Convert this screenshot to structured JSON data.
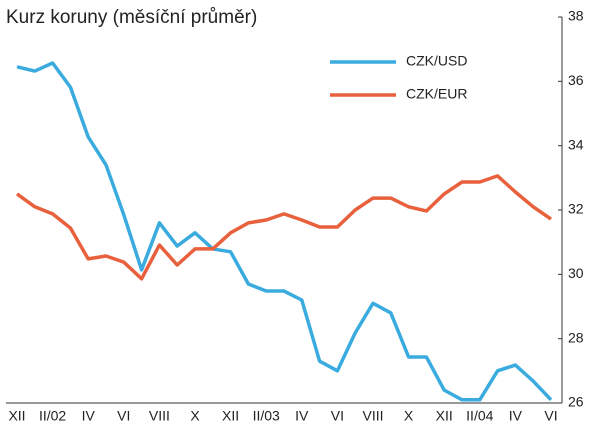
{
  "chart_data": {
    "type": "line",
    "title": "Kurz koruny (měsíční průměr)",
    "categories": [
      "XII",
      null,
      "II/02",
      null,
      "IV",
      null,
      "VI",
      null,
      "VIII",
      null,
      "X",
      null,
      "XII",
      null,
      "II/03",
      null,
      "IV",
      null,
      "VI",
      null,
      "VIII",
      null,
      "X",
      null,
      "XII",
      null,
      "II/04",
      null,
      "IV",
      null,
      "VI"
    ],
    "series": [
      {
        "name": "CZK/USD",
        "color": "#3aabdf",
        "values": [
          36.45,
          36.32,
          36.57,
          35.82,
          34.27,
          33.4,
          31.85,
          30.14,
          31.6,
          30.88,
          31.29,
          30.79,
          30.7,
          29.7,
          29.48,
          29.48,
          29.2,
          27.3,
          27.0,
          28.18,
          29.1,
          28.8,
          27.43,
          27.43,
          26.4,
          26.1,
          26.1,
          27.0,
          27.18,
          26.68,
          26.1
        ]
      },
      {
        "name": "CZK/EUR",
        "color": "#e8603c",
        "values": [
          32.5,
          32.1,
          31.88,
          31.44,
          30.48,
          30.57,
          30.38,
          29.86,
          30.91,
          30.29,
          30.79,
          30.79,
          31.29,
          31.6,
          31.69,
          31.88,
          31.69,
          31.47,
          31.47,
          32.0,
          32.37,
          32.37,
          32.1,
          31.97,
          32.5,
          32.87,
          32.87,
          33.06,
          32.56,
          32.1,
          31.72
        ]
      }
    ],
    "ylim": [
      26,
      38
    ],
    "yticks": [
      26,
      28,
      30,
      32,
      34,
      36,
      38
    ],
    "y_axis_side": "right",
    "legend": "top-right"
  }
}
